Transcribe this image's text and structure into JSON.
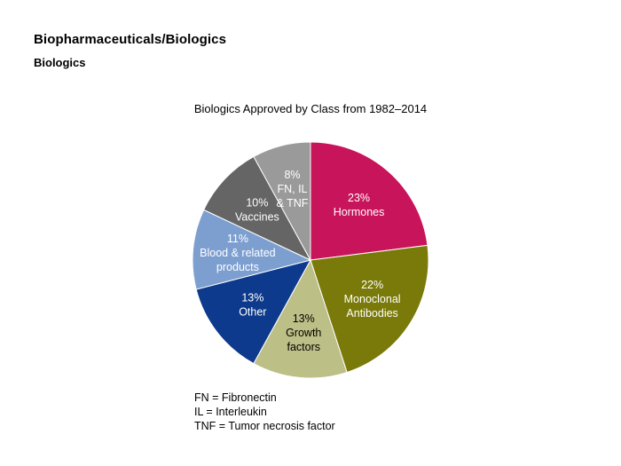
{
  "page": {
    "heading": "Biopharmaceuticals/Biologics",
    "subheading": "Biologics"
  },
  "chart_data": {
    "type": "pie",
    "title": "Biologics Approved by Class from 1982–2014",
    "unit": "%",
    "slices": [
      {
        "label_lines": [
          "Hormones"
        ],
        "value": 23,
        "color": "#c8145a",
        "text_color": "#ffffff"
      },
      {
        "label_lines": [
          "Monoclonal",
          "Antibodies"
        ],
        "value": 22,
        "color": "#7a7a0a",
        "text_color": "#ffffff"
      },
      {
        "label_lines": [
          "Growth",
          "factors"
        ],
        "value": 13,
        "color": "#bcbf86",
        "text_color": "#000000"
      },
      {
        "label_lines": [
          "Other"
        ],
        "value": 13,
        "color": "#0d3a8c",
        "text_color": "#ffffff"
      },
      {
        "label_lines": [
          "Blood & related",
          "products"
        ],
        "value": 11,
        "color": "#7d9fd0",
        "text_color": "#ffffff"
      },
      {
        "label_lines": [
          "Vaccines"
        ],
        "value": 10,
        "color": "#656565",
        "text_color": "#ffffff"
      },
      {
        "label_lines": [
          "FN, IL",
          "& TNF"
        ],
        "value": 8,
        "color": "#9a9a9a",
        "text_color": "#ffffff"
      }
    ]
  },
  "legend_notes": [
    "FN = Fibronectin",
    "IL = Interleukin",
    "TNF = Tumor necrosis factor"
  ]
}
